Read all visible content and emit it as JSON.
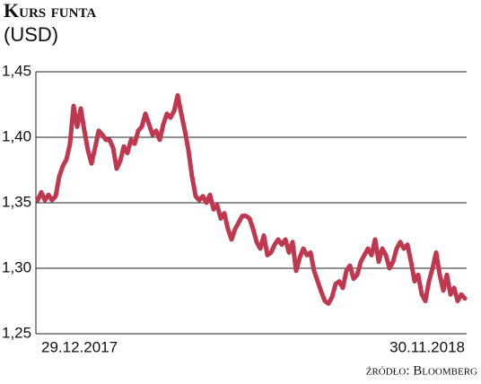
{
  "chart_data": {
    "type": "line",
    "title": "Kurs funta",
    "subtitle": "(USD)",
    "source": "źródło: Bloomberg",
    "categories": [
      "29.12.2017",
      null,
      null,
      null,
      null,
      null,
      null,
      null,
      null,
      null,
      null,
      null,
      null,
      null,
      null,
      null,
      null,
      null,
      null,
      null,
      null,
      null,
      null,
      null,
      null,
      null,
      null,
      null,
      null,
      null,
      null,
      null,
      null,
      null,
      null,
      null,
      null,
      null,
      null,
      null,
      null,
      null,
      null,
      null,
      null,
      null,
      null,
      null,
      null,
      null,
      null,
      null,
      null,
      null,
      null,
      null,
      null,
      null,
      null,
      null,
      null,
      null,
      null,
      null,
      null,
      null,
      null,
      null,
      null,
      null,
      null,
      null,
      null,
      null,
      null,
      null,
      null,
      null,
      null,
      null,
      null,
      null,
      null,
      null,
      null,
      null,
      null,
      null,
      null,
      null,
      null,
      null,
      null,
      null,
      null,
      null,
      null,
      null,
      null,
      null,
      null,
      null,
      null,
      null,
      null,
      null,
      null,
      null,
      null,
      null,
      null,
      null,
      null,
      null,
      null,
      null,
      null,
      null,
      null,
      "30.11.2018"
    ],
    "values": [
      1.352,
      1.358,
      1.352,
      1.356,
      1.352,
      1.355,
      1.37,
      1.378,
      1.383,
      1.395,
      1.424,
      1.408,
      1.422,
      1.405,
      1.39,
      1.38,
      1.392,
      1.405,
      1.402,
      1.398,
      1.398,
      1.392,
      1.376,
      1.382,
      1.393,
      1.388,
      1.398,
      1.395,
      1.405,
      1.408,
      1.418,
      1.41,
      1.402,
      1.405,
      1.398,
      1.41,
      1.418,
      1.415,
      1.42,
      1.432,
      1.418,
      1.405,
      1.39,
      1.37,
      1.355,
      1.352,
      1.355,
      1.35,
      1.356,
      1.345,
      1.348,
      1.338,
      1.342,
      1.33,
      1.322,
      1.33,
      1.335,
      1.34,
      1.34,
      1.338,
      1.33,
      1.32,
      1.315,
      1.325,
      1.31,
      1.312,
      1.318,
      1.322,
      1.318,
      1.322,
      1.312,
      1.32,
      1.298,
      1.308,
      1.315,
      1.31,
      1.312,
      1.298,
      1.29,
      1.282,
      1.275,
      1.273,
      1.278,
      1.288,
      1.29,
      1.285,
      1.298,
      1.302,
      1.292,
      1.295,
      1.305,
      1.31,
      1.315,
      1.31,
      1.322,
      1.305,
      1.315,
      1.31,
      1.3,
      1.305,
      1.315,
      1.32,
      1.315,
      1.318,
      1.305,
      1.29,
      1.295,
      1.28,
      1.275,
      1.29,
      1.3,
      1.312,
      1.295,
      1.283,
      1.295,
      1.28,
      1.285,
      1.275,
      1.28,
      1.277
    ],
    "color": "#c0384f",
    "ylim": [
      1.25,
      1.45
    ],
    "yticks": [
      {
        "value": 1.25,
        "label": "1,25"
      },
      {
        "value": 1.3,
        "label": "1,30"
      },
      {
        "value": 1.35,
        "label": "1,35"
      },
      {
        "value": 1.4,
        "label": "1,40"
      },
      {
        "value": 1.45,
        "label": "1,45"
      }
    ],
    "grid": true
  }
}
